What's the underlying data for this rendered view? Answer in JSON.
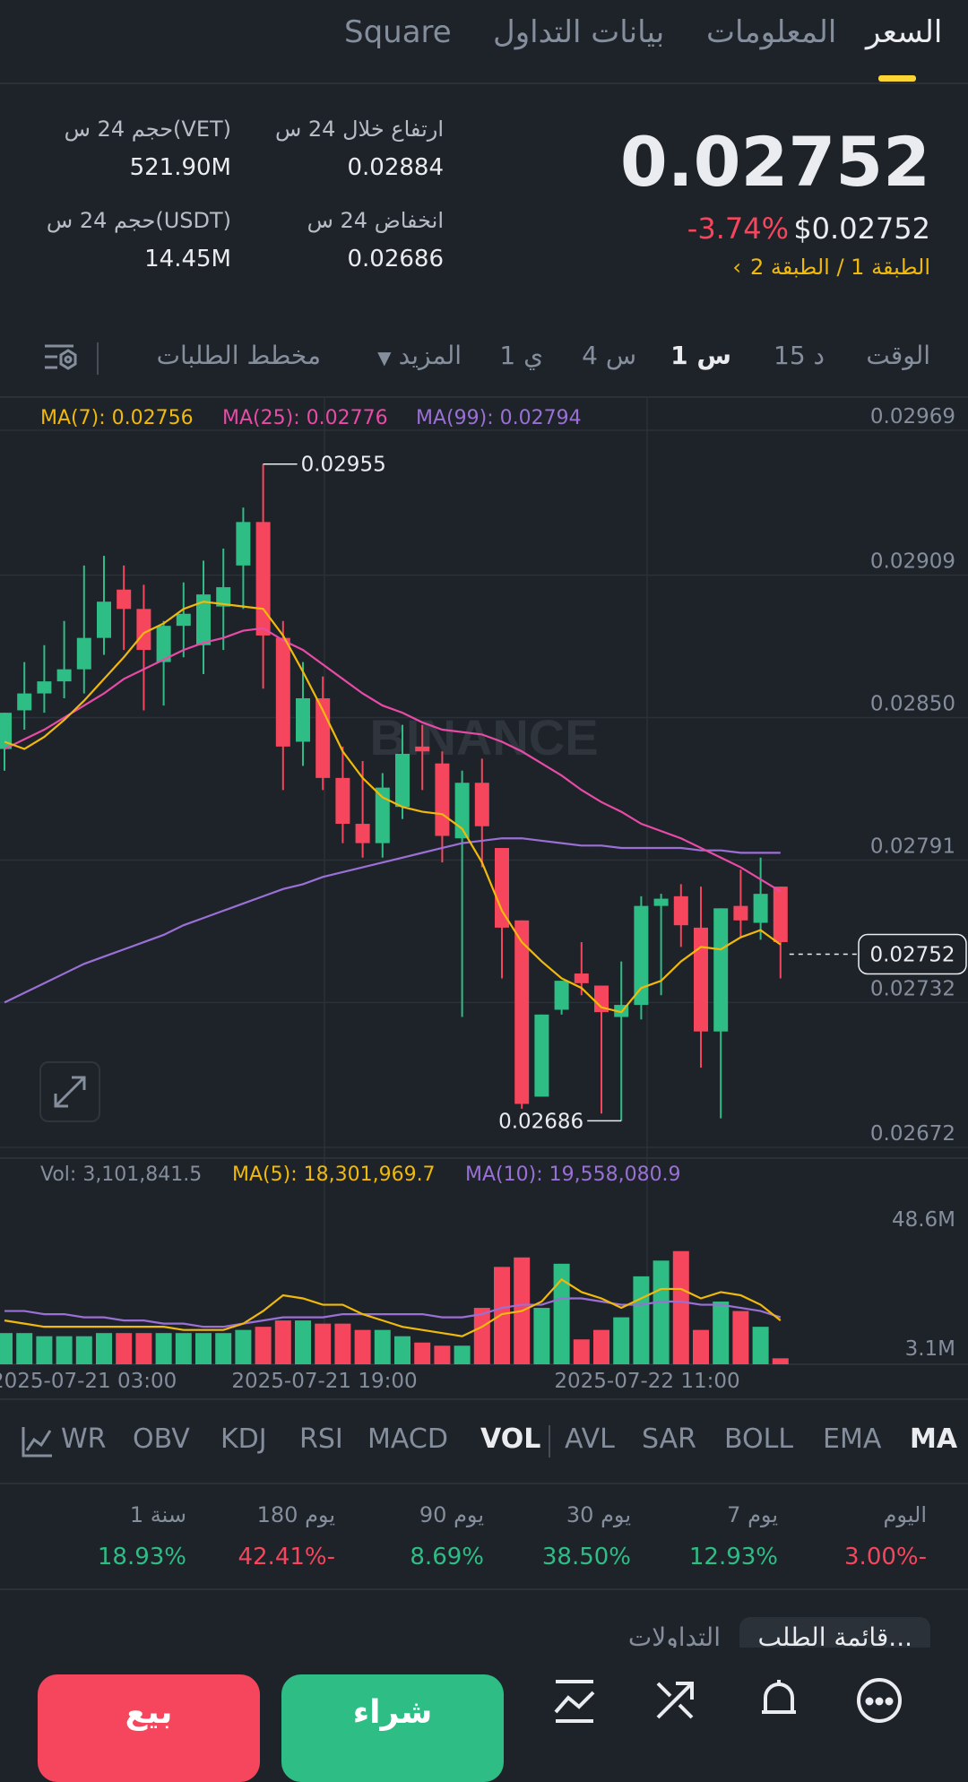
{
  "tabs": [
    {
      "label": "السعر",
      "active": true
    },
    {
      "label": "المعلومات"
    },
    {
      "label": "بيانات التداول"
    },
    {
      "label": "Square"
    }
  ],
  "price": {
    "last": "0.02752",
    "change_pct": "-3.74%",
    "usd": "$0.02752",
    "layer_tag": "الطبقة 1 / الطبقة 2"
  },
  "stats": {
    "high_label": "ارتفاع خلال 24 س",
    "high": "0.02884",
    "low_label": "انخفاض 24 س",
    "low": "0.02686",
    "vol_vet_label": "حجم 24 س(VET)",
    "vol_vet": "521.90M",
    "vol_usdt_label": "حجم 24 س(USDT)",
    "vol_usdt": "14.45M"
  },
  "intervals": [
    "الوقت",
    "15 د",
    "1 س",
    "4 س",
    "1 ي"
  ],
  "active_interval": "1 س",
  "more_label": "المزيد",
  "depth_label": "مخطط الطلبات",
  "ma_legend": {
    "ma7": "MA(7): 0.02756",
    "ma25": "MA(25): 0.02776",
    "ma99": "MA(99): 0.02794"
  },
  "vol_legend": {
    "vol": "Vol: 3,101,841.5",
    "ma5": "MA(5): 18,301,969.7",
    "ma10": "MA(10): 19,558,080.9"
  },
  "colors": {
    "up": "#2ebd85",
    "down": "#f6465d",
    "ma7": "#f0b90b",
    "ma25": "#e84ba7",
    "ma99": "#9b70d6",
    "accent": "#fcd535"
  },
  "chart_data": {
    "type": "candlestick",
    "yaxis_ticks": [
      "0.02969",
      "0.02909",
      "0.02850",
      "0.02791",
      "0.02732",
      "0.02672"
    ],
    "ylim": [
      0.02672,
      0.02969
    ],
    "annotations": {
      "high": "0.02955",
      "low": "0.02686",
      "current": "0.02752"
    },
    "watermark": "BINANCE",
    "candles": [
      {
        "o": 0.02837,
        "h": 0.02852,
        "l": 0.02828,
        "c": 0.02852
      },
      {
        "o": 0.02853,
        "h": 0.02873,
        "l": 0.02845,
        "c": 0.0286
      },
      {
        "o": 0.0286,
        "h": 0.0288,
        "l": 0.02852,
        "c": 0.02865
      },
      {
        "o": 0.02865,
        "h": 0.0289,
        "l": 0.02858,
        "c": 0.0287
      },
      {
        "o": 0.0287,
        "h": 0.02913,
        "l": 0.0286,
        "c": 0.02883
      },
      {
        "o": 0.02883,
        "h": 0.02917,
        "l": 0.02876,
        "c": 0.02898
      },
      {
        "o": 0.02903,
        "h": 0.02913,
        "l": 0.02878,
        "c": 0.02895
      },
      {
        "o": 0.02895,
        "h": 0.02905,
        "l": 0.02853,
        "c": 0.02878
      },
      {
        "o": 0.02873,
        "h": 0.0289,
        "l": 0.02855,
        "c": 0.02888
      },
      {
        "o": 0.02888,
        "h": 0.02906,
        "l": 0.02875,
        "c": 0.02893
      },
      {
        "o": 0.0288,
        "h": 0.02915,
        "l": 0.02868,
        "c": 0.02901
      },
      {
        "o": 0.02896,
        "h": 0.0292,
        "l": 0.02878,
        "c": 0.02904
      },
      {
        "o": 0.02913,
        "h": 0.02937,
        "l": 0.02895,
        "c": 0.02931
      },
      {
        "o": 0.02931,
        "h": 0.02955,
        "l": 0.02862,
        "c": 0.02884
      },
      {
        "o": 0.02883,
        "h": 0.0289,
        "l": 0.0282,
        "c": 0.02838
      },
      {
        "o": 0.0284,
        "h": 0.02873,
        "l": 0.0283,
        "c": 0.02858
      },
      {
        "o": 0.02858,
        "h": 0.02867,
        "l": 0.0282,
        "c": 0.02825
      },
      {
        "o": 0.02825,
        "h": 0.02838,
        "l": 0.02798,
        "c": 0.02806
      },
      {
        "o": 0.02806,
        "h": 0.02832,
        "l": 0.02792,
        "c": 0.02798
      },
      {
        "o": 0.02798,
        "h": 0.02827,
        "l": 0.02792,
        "c": 0.02821
      },
      {
        "o": 0.02813,
        "h": 0.02847,
        "l": 0.02808,
        "c": 0.02835
      },
      {
        "o": 0.02838,
        "h": 0.02847,
        "l": 0.0282,
        "c": 0.02836
      },
      {
        "o": 0.02831,
        "h": 0.02836,
        "l": 0.0279,
        "c": 0.02801
      },
      {
        "o": 0.028,
        "h": 0.02828,
        "l": 0.02726,
        "c": 0.02823
      },
      {
        "o": 0.02823,
        "h": 0.02833,
        "l": 0.02788,
        "c": 0.02805
      },
      {
        "o": 0.02796,
        "h": 0.02796,
        "l": 0.02742,
        "c": 0.02763
      },
      {
        "o": 0.02766,
        "h": 0.02766,
        "l": 0.02688,
        "c": 0.0269
      },
      {
        "o": 0.02693,
        "h": 0.02727,
        "l": 0.02693,
        "c": 0.02727
      },
      {
        "o": 0.02729,
        "h": 0.02741,
        "l": 0.02727,
        "c": 0.02741
      },
      {
        "o": 0.02744,
        "h": 0.02757,
        "l": 0.02735,
        "c": 0.0274
      },
      {
        "o": 0.02739,
        "h": 0.02739,
        "l": 0.02686,
        "c": 0.02728
      },
      {
        "o": 0.02726,
        "h": 0.02749,
        "l": 0.02683,
        "c": 0.02731
      },
      {
        "o": 0.02731,
        "h": 0.02776,
        "l": 0.02725,
        "c": 0.02772
      },
      {
        "o": 0.02772,
        "h": 0.02777,
        "l": 0.02735,
        "c": 0.02775
      },
      {
        "o": 0.02776,
        "h": 0.02781,
        "l": 0.02755,
        "c": 0.02764
      },
      {
        "o": 0.02763,
        "h": 0.0278,
        "l": 0.02705,
        "c": 0.0272
      },
      {
        "o": 0.0272,
        "h": 0.02771,
        "l": 0.02684,
        "c": 0.02771
      },
      {
        "o": 0.02772,
        "h": 0.02787,
        "l": 0.02759,
        "c": 0.02766
      },
      {
        "o": 0.02765,
        "h": 0.02792,
        "l": 0.02758,
        "c": 0.02777
      },
      {
        "o": 0.0278,
        "h": 0.0278,
        "l": 0.02742,
        "c": 0.02757
      }
    ],
    "ma7": [
      0.0284,
      0.02837,
      0.02842,
      0.02849,
      0.02857,
      0.02866,
      0.02875,
      0.02885,
      0.02889,
      0.02895,
      0.02898,
      0.02897,
      0.02896,
      0.02895,
      0.02884,
      0.02869,
      0.02853,
      0.02836,
      0.02825,
      0.02817,
      0.02813,
      0.02811,
      0.0281,
      0.02804,
      0.0279,
      0.0277,
      0.02757,
      0.02749,
      0.02742,
      0.02738,
      0.0273,
      0.02728,
      0.02738,
      0.02741,
      0.02749,
      0.02755,
      0.02754,
      0.02759,
      0.02762,
      0.02756
    ],
    "ma25": [
      0.02837,
      0.02841,
      0.02845,
      0.0285,
      0.02855,
      0.0286,
      0.02866,
      0.0287,
      0.02874,
      0.02878,
      0.02881,
      0.02883,
      0.02886,
      0.02887,
      0.02882,
      0.02878,
      0.02872,
      0.02866,
      0.0286,
      0.02855,
      0.02852,
      0.02848,
      0.02845,
      0.02844,
      0.02843,
      0.0284,
      0.02836,
      0.02831,
      0.02826,
      0.0282,
      0.02815,
      0.02811,
      0.02806,
      0.02803,
      0.028,
      0.02796,
      0.02792,
      0.02788,
      0.02783,
      0.02778
    ],
    "ma99": [
      0.02732,
      0.02736,
      0.0274,
      0.02744,
      0.02748,
      0.02751,
      0.02754,
      0.02757,
      0.0276,
      0.02764,
      0.02767,
      0.0277,
      0.02773,
      0.02776,
      0.02779,
      0.02781,
      0.02784,
      0.02786,
      0.02788,
      0.0279,
      0.02792,
      0.02794,
      0.02796,
      0.02798,
      0.02799,
      0.028,
      0.028,
      0.02799,
      0.02798,
      0.02797,
      0.02797,
      0.02796,
      0.02796,
      0.02796,
      0.02796,
      0.02795,
      0.02795,
      0.02794,
      0.02794,
      0.02794
    ],
    "volume_axis": {
      "max_label": "48.6M",
      "min_label": "3.1M",
      "ylim": [
        3.1,
        48.6
      ]
    },
    "volume": [
      13,
      13,
      12,
      12,
      12,
      13,
      13,
      13,
      13,
      13,
      13,
      13,
      14,
      15,
      17,
      17,
      16,
      16,
      14,
      14,
      12,
      10,
      9,
      9,
      21,
      34,
      37,
      21,
      35,
      11,
      14,
      18,
      31,
      36,
      39,
      14,
      23,
      20,
      15,
      5
    ],
    "vol_ma5": [
      17,
      16,
      15,
      15,
      15,
      15,
      15,
      15,
      15,
      14,
      14,
      14,
      16,
      20,
      25,
      24,
      22,
      22,
      19,
      17,
      15,
      14,
      13,
      12,
      15,
      19,
      20,
      23,
      30,
      26,
      24,
      21,
      24,
      27,
      27,
      24,
      26,
      25,
      22,
      17
    ],
    "vol_ma10": [
      20,
      20,
      19,
      19,
      18,
      18,
      17,
      17,
      16,
      16,
      15,
      15,
      16,
      17,
      18,
      18,
      18,
      19,
      19,
      19,
      19,
      19,
      18,
      18,
      19,
      21,
      22,
      22,
      24,
      24,
      23,
      22,
      22,
      23,
      23,
      22,
      22,
      21,
      20,
      18
    ],
    "x_ticks": [
      "2025-07-21 03:00",
      "2025-07-21 19:00",
      "2025-07-22 11:00"
    ]
  },
  "indicators": [
    "MA",
    "EMA",
    "BOLL",
    "SAR",
    "AVL",
    "VOL",
    "MACD",
    "RSI",
    "KDJ",
    "OBV",
    "WR"
  ],
  "active_indicators": [
    "MA",
    "VOL"
  ],
  "perf": [
    {
      "label": "اليوم",
      "value": "3.00%-",
      "dir": "down"
    },
    {
      "label": "7 يوم",
      "value": "12.93%",
      "dir": "up"
    },
    {
      "label": "30 يوم",
      "value": "38.50%",
      "dir": "up"
    },
    {
      "label": "90 يوم",
      "value": "8.69%",
      "dir": "up"
    },
    {
      "label": "180 يوم",
      "value": "42.41%-",
      "dir": "down"
    },
    {
      "label": "1 سنة",
      "value": "18.93%",
      "dir": "up"
    }
  ],
  "orderbook_tabs": {
    "order_book": "قائمة الطلب...",
    "trades": "التداولات"
  },
  "bottom": {
    "sell": "بيع",
    "buy": "شراء"
  }
}
